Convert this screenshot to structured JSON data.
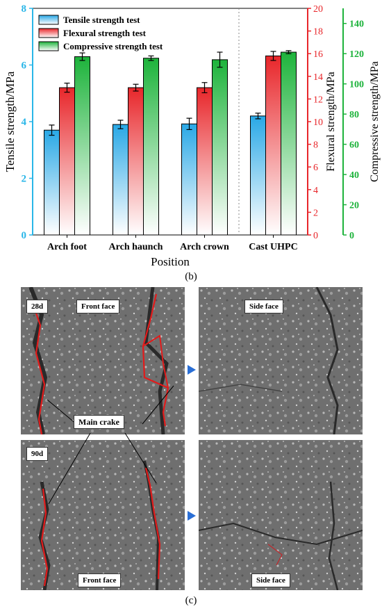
{
  "chart_data": {
    "type": "bar",
    "categories": [
      "Arch foot",
      "Arch haunch",
      "Arch crown",
      "Cast UHPC"
    ],
    "xlabel": "Position",
    "axes": {
      "left": {
        "label": "Tensile strength/MPa",
        "ylim": [
          0,
          8
        ],
        "ticks": [
          0,
          2,
          4,
          6,
          8
        ],
        "color": "#29b6e8"
      },
      "right1": {
        "label": "Flexural strength/MPa",
        "ylim": [
          0,
          20
        ],
        "ticks": [
          0,
          2,
          4,
          6,
          8,
          10,
          12,
          14,
          16,
          18,
          20
        ],
        "color": "#e8262a"
      },
      "right2": {
        "label": "Compressive strength/MPa",
        "ylim": [
          0,
          150
        ],
        "ticks": [
          0,
          20,
          40,
          60,
          80,
          100,
          120,
          140
        ],
        "color": "#1db33b"
      }
    },
    "series": [
      {
        "name": "Tensile strength test",
        "axis": "left",
        "color": "#29a8e6",
        "values": [
          3.7,
          3.9,
          3.92,
          4.2
        ],
        "errors": [
          0.18,
          0.15,
          0.2,
          0.1
        ]
      },
      {
        "name": "Flexural strength test",
        "axis": "right1",
        "color": "#e8262a",
        "values": [
          13.0,
          13.0,
          13.0,
          15.8
        ],
        "errors": [
          0.4,
          0.3,
          0.45,
          0.4
        ]
      },
      {
        "name": "Compressive strength test",
        "axis": "right2",
        "color": "#1db33b",
        "values": [
          118,
          117,
          116,
          121
        ],
        "errors": [
          2.5,
          1.5,
          5.0,
          1.0
        ]
      }
    ],
    "legend_position": "top-left",
    "grid": false
  },
  "panels": {
    "b": "(b)",
    "c": "(c)"
  },
  "photos": {
    "tags": {
      "age_28": "28d",
      "age_90": "90d",
      "front_face_top": "Front face",
      "side_face_top": "Side face",
      "main_crake": "Main crake",
      "front_face_bottom": "Front face",
      "side_face_bottom": "Side face"
    }
  }
}
